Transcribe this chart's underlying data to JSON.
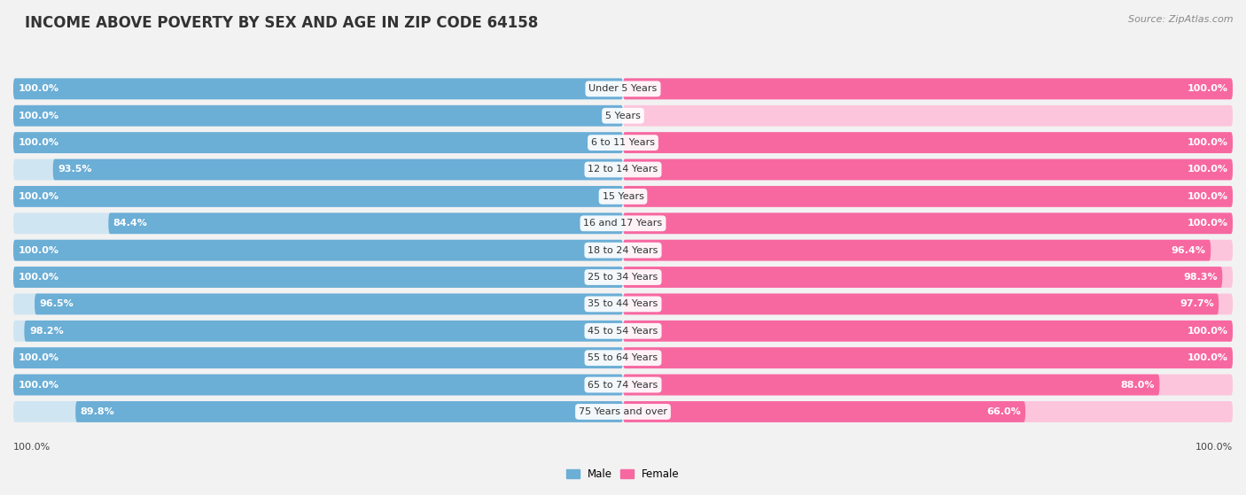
{
  "title": "INCOME ABOVE POVERTY BY SEX AND AGE IN ZIP CODE 64158",
  "source": "Source: ZipAtlas.com",
  "categories": [
    "Under 5 Years",
    "5 Years",
    "6 to 11 Years",
    "12 to 14 Years",
    "15 Years",
    "16 and 17 Years",
    "18 to 24 Years",
    "25 to 34 Years",
    "35 to 44 Years",
    "45 to 54 Years",
    "55 to 64 Years",
    "65 to 74 Years",
    "75 Years and over"
  ],
  "male": [
    100.0,
    100.0,
    100.0,
    93.5,
    100.0,
    84.4,
    100.0,
    100.0,
    96.5,
    98.2,
    100.0,
    100.0,
    89.8
  ],
  "female": [
    100.0,
    0.0,
    100.0,
    100.0,
    100.0,
    100.0,
    96.4,
    98.3,
    97.7,
    100.0,
    100.0,
    88.0,
    66.0
  ],
  "male_color": "#6baed6",
  "male_light_color": "#d0e5f2",
  "female_color": "#f768a1",
  "female_light_color": "#fcc5dc",
  "bg_color": "#f2f2f2",
  "row_bg_color": "#e8e8e8",
  "title_fontsize": 12,
  "label_fontsize": 8,
  "source_fontsize": 8,
  "legend_label_male": "Male",
  "legend_label_female": "Female",
  "bottom_label": "100.0%"
}
